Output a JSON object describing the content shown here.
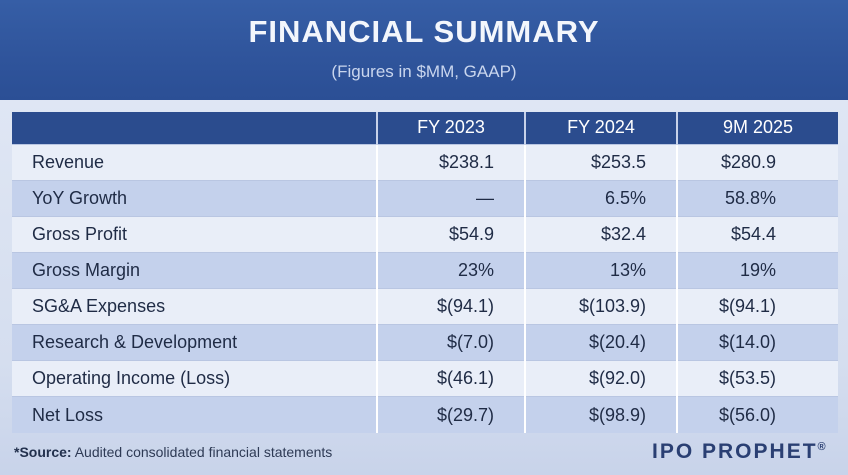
{
  "header": {
    "title": "FINANCIAL SUMMARY",
    "subtitle": "(Figures in $MM, GAAP)"
  },
  "table": {
    "columns": [
      "",
      "FY 2023",
      "FY 2024",
      "9M 2025"
    ],
    "rows": [
      {
        "label": "Revenue",
        "values": [
          "$238.1",
          "$253.5",
          "$280.9"
        ]
      },
      {
        "label": "YoY Growth",
        "values": [
          "—",
          "6.5%",
          "58.8%"
        ]
      },
      {
        "label": "Gross Profit",
        "values": [
          "$54.9",
          "$32.4",
          "$54.4"
        ]
      },
      {
        "label": "Gross Margin",
        "values": [
          "23%",
          "13%",
          "19%"
        ]
      },
      {
        "label": "SG&A Expenses",
        "values": [
          "$(94.1)",
          "$(103.9)",
          "$(94.1)"
        ]
      },
      {
        "label": "Research & Development",
        "values": [
          "$(7.0)",
          "$(20.4)",
          "$(14.0)"
        ]
      },
      {
        "label": "Operating Income (Loss)",
        "values": [
          "$(46.1)",
          "$(92.0)",
          "$(53.5)"
        ]
      },
      {
        "label": "Net Loss",
        "values": [
          "$(29.7)",
          "$(98.9)",
          "$(56.0)"
        ]
      }
    ]
  },
  "footer": {
    "source_label": "*Source:",
    "source_text": "Audited consolidated financial statements",
    "logo_text": "IPO PROPHET",
    "logo_mark": "®"
  },
  "colors": {
    "header_bg": "#2f549b",
    "table_header_bg": "#2b4c8e",
    "row_light": "#e9eef8",
    "row_dark": "#c4d1ec"
  }
}
